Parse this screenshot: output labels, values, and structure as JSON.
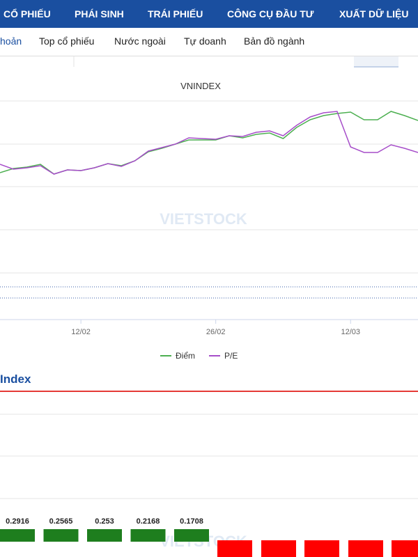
{
  "nav": {
    "items": [
      "CỔ PHIẾU",
      "PHÁI SINH",
      "TRÁI PHIẾU",
      "CÔNG CỤ ĐẦU TƯ",
      "XUẤT DỮ LIỆU"
    ]
  },
  "tabs": {
    "items": [
      "hoản",
      "Top cổ phiếu",
      "Nước ngoài",
      "Tự doanh",
      "Bản đồ ngành"
    ]
  },
  "watermark": "VIETSTOCK",
  "chart_data": [
    {
      "type": "line",
      "title": "VNINDEX",
      "categories": [
        null,
        null,
        null,
        null,
        null,
        null,
        "12/02",
        null,
        null,
        null,
        null,
        null,
        null,
        null,
        null,
        null,
        "26/02",
        null,
        null,
        null,
        null,
        null,
        null,
        null,
        null,
        null,
        "12/03",
        null,
        null,
        null,
        null,
        null
      ],
      "series": [
        {
          "name": "Điểm",
          "color": "#4caf50",
          "values": [
            212,
            218,
            220,
            224,
            210,
            216,
            215,
            219,
            225,
            222,
            229,
            242,
            247,
            253,
            259,
            259,
            259,
            265,
            262,
            267,
            269,
            261,
            277,
            288,
            294,
            297,
            299,
            288,
            288,
            300,
            294,
            287
          ]
        },
        {
          "name": "P/E",
          "color": "#a64dc9",
          "values": [
            224,
            217,
            219,
            222,
            210,
            216,
            215,
            219,
            225,
            221,
            229,
            243,
            248,
            253,
            262,
            261,
            260,
            265,
            264,
            270,
            272,
            265,
            280,
            292,
            298,
            300,
            249,
            241,
            241,
            252,
            247,
            241
          ]
        }
      ]
    },
    {
      "type": "bar",
      "title": "Index",
      "values": [
        0.2916,
        0.2565,
        0.253,
        0.2168,
        0.1708
      ],
      "color": "#1e7e1e"
    }
  ]
}
